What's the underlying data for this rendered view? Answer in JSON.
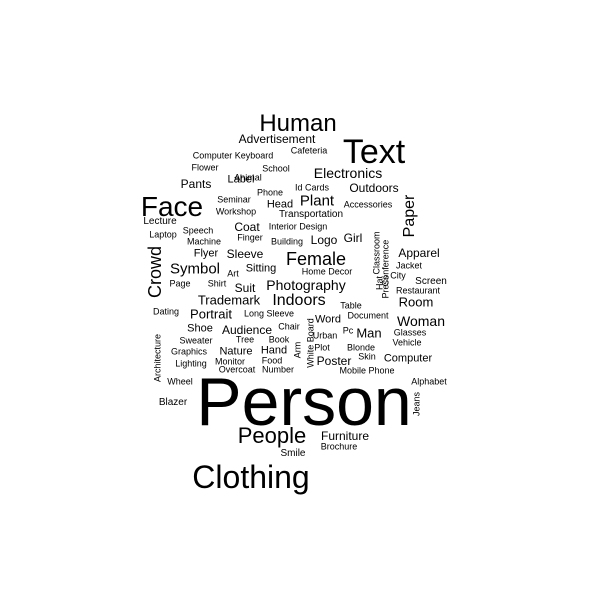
{
  "word_cloud": {
    "text_color": "#000000",
    "background": "#ffffff",
    "words": [
      {
        "text": "Person",
        "vertical": false
      },
      {
        "text": "Clothing",
        "vertical": false
      },
      {
        "text": "Text",
        "vertical": false
      },
      {
        "text": "Face",
        "vertical": false
      },
      {
        "text": "Human",
        "vertical": false
      },
      {
        "text": "People",
        "vertical": false
      },
      {
        "text": "Crowd",
        "vertical": true
      },
      {
        "text": "Female",
        "vertical": false
      },
      {
        "text": "Electronics",
        "vertical": false
      },
      {
        "text": "Paper",
        "vertical": true
      },
      {
        "text": "Indoors",
        "vertical": false
      },
      {
        "text": "Plant",
        "vertical": false
      },
      {
        "text": "Symbol",
        "vertical": false
      },
      {
        "text": "Photography",
        "vertical": false
      },
      {
        "text": "Woman",
        "vertical": false
      },
      {
        "text": "Advertisement",
        "vertical": false
      },
      {
        "text": "Outdoors",
        "vertical": false
      },
      {
        "text": "Pants",
        "vertical": false
      },
      {
        "text": "Apparel",
        "vertical": false
      },
      {
        "text": "Room",
        "vertical": false
      },
      {
        "text": "Trademark",
        "vertical": false
      },
      {
        "text": "Portrait",
        "vertical": false
      },
      {
        "text": "Audience",
        "vertical": false
      },
      {
        "text": "Furniture",
        "vertical": false
      },
      {
        "text": "Man",
        "vertical": false
      },
      {
        "text": "Poster",
        "vertical": false
      },
      {
        "text": "Logo",
        "vertical": false
      },
      {
        "text": "Girl",
        "vertical": false
      },
      {
        "text": "Coat",
        "vertical": false
      },
      {
        "text": "Sleeve",
        "vertical": false
      },
      {
        "text": "Flyer",
        "vertical": false
      },
      {
        "text": "Suit",
        "vertical": false
      },
      {
        "text": "Label",
        "vertical": false
      },
      {
        "text": "Head",
        "vertical": false
      },
      {
        "text": "Lecture",
        "vertical": false
      },
      {
        "text": "Sitting",
        "vertical": false
      },
      {
        "text": "Nature",
        "vertical": false
      },
      {
        "text": "Hand",
        "vertical": false
      },
      {
        "text": "Shoe",
        "vertical": false
      },
      {
        "text": "Word",
        "vertical": false
      },
      {
        "text": "Computer",
        "vertical": false
      },
      {
        "text": "Blazer",
        "vertical": false
      },
      {
        "text": "Transportation",
        "vertical": false
      },
      {
        "text": "Screen",
        "vertical": false
      },
      {
        "text": "Speech",
        "vertical": false
      },
      {
        "text": "Smile",
        "vertical": false
      },
      {
        "text": "Computer Keyboard",
        "vertical": false
      },
      {
        "text": "School",
        "vertical": false
      },
      {
        "text": "Cafeteria",
        "vertical": false
      },
      {
        "text": "Flower",
        "vertical": false
      },
      {
        "text": "Animal",
        "vertical": false
      },
      {
        "text": "Phone",
        "vertical": false
      },
      {
        "text": "Id Cards",
        "vertical": false
      },
      {
        "text": "Seminar",
        "vertical": false
      },
      {
        "text": "Accessories",
        "vertical": false
      },
      {
        "text": "Workshop",
        "vertical": false
      },
      {
        "text": "Laptop",
        "vertical": false
      },
      {
        "text": "Interior Design",
        "vertical": false
      },
      {
        "text": "Machine",
        "vertical": false
      },
      {
        "text": "Finger",
        "vertical": false
      },
      {
        "text": "Building",
        "vertical": false
      },
      {
        "text": "Classroom",
        "vertical": true
      },
      {
        "text": "Conference",
        "vertical": true
      },
      {
        "text": "Jacket",
        "vertical": false
      },
      {
        "text": "Hat",
        "vertical": true
      },
      {
        "text": "Press",
        "vertical": true
      },
      {
        "text": "City",
        "vertical": false
      },
      {
        "text": "Art",
        "vertical": false
      },
      {
        "text": "Home Decor",
        "vertical": false
      },
      {
        "text": "Page",
        "vertical": false
      },
      {
        "text": "Shirt",
        "vertical": false
      },
      {
        "text": "Restaurant",
        "vertical": false
      },
      {
        "text": "Table",
        "vertical": false
      },
      {
        "text": "Dating",
        "vertical": false
      },
      {
        "text": "Long Sleeve",
        "vertical": false
      },
      {
        "text": "Document",
        "vertical": false
      },
      {
        "text": "Chair",
        "vertical": false
      },
      {
        "text": "White Board",
        "vertical": true
      },
      {
        "text": "Pc",
        "vertical": false
      },
      {
        "text": "Urban",
        "vertical": false
      },
      {
        "text": "Glasses",
        "vertical": false
      },
      {
        "text": "Sweater",
        "vertical": false
      },
      {
        "text": "Tree",
        "vertical": false
      },
      {
        "text": "Book",
        "vertical": false
      },
      {
        "text": "Arm",
        "vertical": true
      },
      {
        "text": "Plot",
        "vertical": false
      },
      {
        "text": "Blonde",
        "vertical": false
      },
      {
        "text": "Vehicle",
        "vertical": false
      },
      {
        "text": "Architecture",
        "vertical": true
      },
      {
        "text": "Graphics",
        "vertical": false
      },
      {
        "text": "Monitor",
        "vertical": false
      },
      {
        "text": "Food",
        "vertical": false
      },
      {
        "text": "Skin",
        "vertical": false
      },
      {
        "text": "Lighting",
        "vertical": false
      },
      {
        "text": "Overcoat",
        "vertical": false
      },
      {
        "text": "Number",
        "vertical": false
      },
      {
        "text": "Mobile Phone",
        "vertical": false
      },
      {
        "text": "Wheel",
        "vertical": false
      },
      {
        "text": "Alphabet",
        "vertical": false
      },
      {
        "text": "Jeans",
        "vertical": true
      },
      {
        "text": "Brochure",
        "vertical": false
      }
    ]
  }
}
